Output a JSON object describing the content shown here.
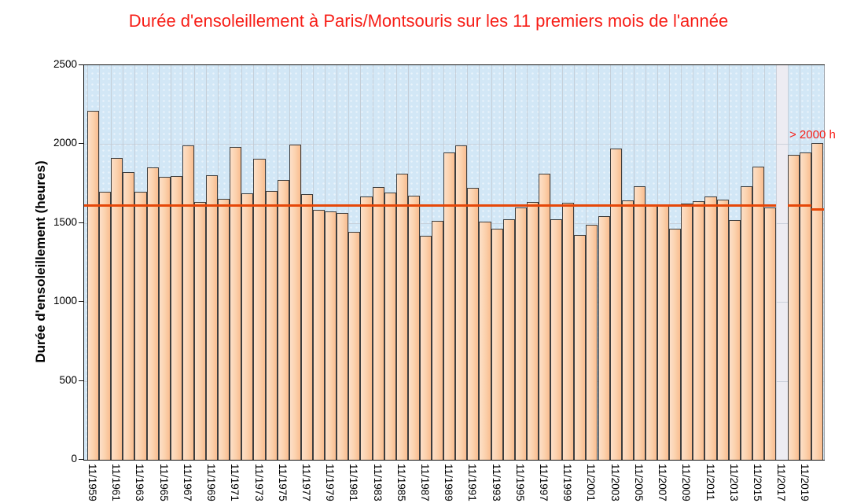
{
  "title": "Durée d'ensoleillement à Paris/Montsouris sur les 11 premiers mois de l'année",
  "title_color": "#f71e17",
  "annotation": {
    "text": "> 2000 h",
    "color": "#f71e17",
    "y_value": 2000
  },
  "chart_data": {
    "type": "bar",
    "title": "Durée d'ensoleillement à Paris/Montsouris sur les 11 premiers mois de l'année",
    "xlabel": "",
    "ylabel": "Durée d'ensoleillement (heures)",
    "ylim": [
      0,
      2500
    ],
    "yticks": [
      0,
      500,
      1000,
      1500,
      2000,
      2500
    ],
    "grid": true,
    "legend": null,
    "years": [
      1959,
      1960,
      1961,
      1962,
      1963,
      1964,
      1965,
      1966,
      1967,
      1968,
      1969,
      1970,
      1971,
      1972,
      1973,
      1974,
      1975,
      1976,
      1977,
      1978,
      1979,
      1980,
      1981,
      1982,
      1983,
      1984,
      1985,
      1986,
      1987,
      1988,
      1989,
      1990,
      1991,
      1992,
      1993,
      1994,
      1995,
      1996,
      1997,
      1998,
      1999,
      2000,
      2001,
      2002,
      2003,
      2004,
      2005,
      2006,
      2007,
      2008,
      2009,
      2010,
      2011,
      2012,
      2013,
      2014,
      2015,
      2016,
      2017,
      2018,
      2019,
      2020
    ],
    "values": [
      2210,
      1700,
      1910,
      1825,
      1700,
      1855,
      1795,
      1800,
      1990,
      1635,
      1805,
      1655,
      1980,
      1690,
      1905,
      1705,
      1775,
      1995,
      1685,
      1585,
      1575,
      1565,
      1445,
      1670,
      1730,
      1695,
      1815,
      1675,
      1420,
      1515,
      1945,
      1990,
      1725,
      1510,
      1465,
      1525,
      1600,
      1635,
      1815,
      1525,
      1630,
      1425,
      1490,
      1545,
      1970,
      1645,
      1735,
      1610,
      1615,
      1465,
      1625,
      1640,
      1670,
      1650,
      1520,
      1735,
      1860,
      1600,
      null,
      1930,
      1945,
      2005
    ],
    "missing_year": 2017,
    "missing_band_color": "#edecf2",
    "x_tick_labels": [
      "11/1959",
      "11/1961",
      "11/1963",
      "11/1965",
      "11/1967",
      "11/1969",
      "11/1971",
      "11/1973",
      "11/1975",
      "11/1977",
      "11/1979",
      "11/1981",
      "11/1983",
      "11/1985",
      "11/1987",
      "11/1989",
      "11/1991",
      "11/1993",
      "11/1995",
      "11/1997",
      "11/1999",
      "11/2001",
      "11/2003",
      "11/2005",
      "11/2007",
      "11/2009",
      "11/2011",
      "11/2013",
      "11/2015",
      "11/2017",
      "11/2019"
    ],
    "mean_line": {
      "value": 1613,
      "last_bar_value": 1588,
      "color": "#e64708"
    },
    "bar_border_color": "#3d3d3d",
    "plot_background": "#d2e7f6"
  }
}
